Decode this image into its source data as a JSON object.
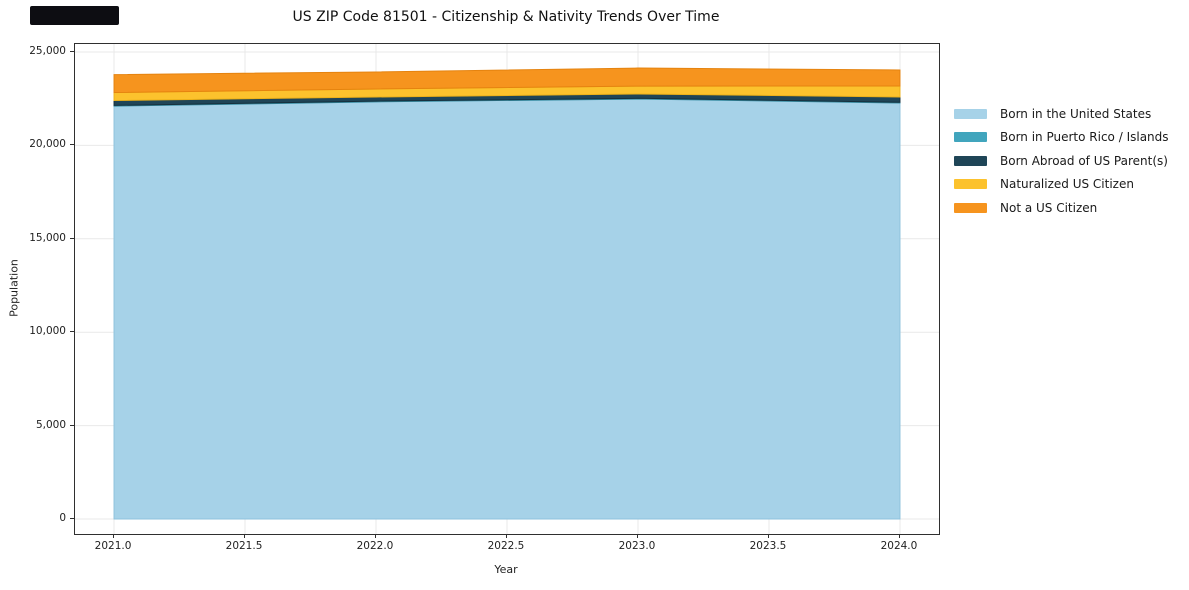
{
  "banner": {
    "present": true
  },
  "chart_data": {
    "type": "area",
    "stacked": true,
    "title": "US ZIP Code 81501 - Citizenship & Nativity Trends Over Time",
    "xlabel": "Year",
    "ylabel": "Population",
    "x": [
      2021,
      2022,
      2023,
      2024
    ],
    "series": [
      {
        "name": "Born in the United States",
        "color": "#a6d2e8",
        "edge": "#8fc3de",
        "values": [
          22100,
          22330,
          22480,
          22270
        ]
      },
      {
        "name": "Born in Puerto Rico / Islands",
        "color": "#41a5bd",
        "edge": "#358ba0",
        "values": [
          40,
          40,
          40,
          40
        ]
      },
      {
        "name": "Born Abroad of US Parent(s)",
        "color": "#1f4557",
        "edge": "#15303d",
        "values": [
          260,
          220,
          230,
          280
        ]
      },
      {
        "name": "Naturalized US Citizen",
        "color": "#fcc22d",
        "edge": "#edb119",
        "values": [
          430,
          430,
          425,
          590
        ]
      },
      {
        "name": "Not a US Citizen",
        "color": "#f6941e",
        "edge": "#e5830f",
        "values": [
          960,
          910,
          965,
          855
        ]
      }
    ],
    "totals": [
      23790,
      23930,
      24140,
      24035
    ],
    "xlim": [
      2020.851,
      2024.149
    ],
    "ylim": [
      -803,
      25427
    ],
    "xticks": {
      "values": [
        2021.0,
        2021.5,
        2022.0,
        2022.5,
        2023.0,
        2023.5,
        2024.0
      ],
      "labels": [
        "2021.0",
        "2021.5",
        "2022.0",
        "2022.5",
        "2023.0",
        "2023.5",
        "2024.0"
      ]
    },
    "yticks": {
      "values": [
        0,
        5000,
        10000,
        15000,
        20000,
        25000
      ],
      "labels": [
        "0",
        "5,000",
        "10,000",
        "15,000",
        "20,000",
        "25,000"
      ]
    },
    "grid": true,
    "grid_color": "#e9e9e9",
    "legend_position": "right of plot, outside"
  },
  "legend": {
    "items": [
      "Born in the United States",
      "Born in Puerto Rico / Islands",
      "Born Abroad of US Parent(s)",
      "Naturalized US Citizen",
      "Not a US Citizen"
    ]
  }
}
